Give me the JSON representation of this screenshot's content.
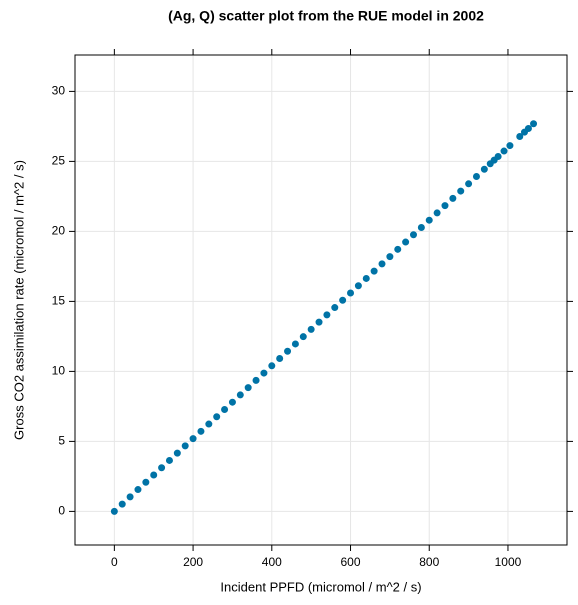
{
  "chart_data": {
    "type": "scatter",
    "title": "(Ag, Q) scatter plot from the RUE model in 2002",
    "x_label": "Incident PPFD (micromol / m^2 / s)",
    "y_label": "Gross CO2 assimilation rate (micromol / m^2 / s)",
    "series": [
      {
        "color": "#0073a6",
        "x": [
          0,
          20,
          40,
          60,
          80,
          100,
          120,
          140,
          160,
          180,
          200,
          220,
          240,
          260,
          280,
          300,
          320,
          340,
          360,
          380,
          400,
          420,
          440,
          460,
          480,
          500,
          520,
          540,
          560,
          580,
          600,
          620,
          640,
          660,
          680,
          700,
          720,
          740,
          760,
          780,
          800,
          820,
          840,
          860,
          880,
          900,
          920,
          940,
          955,
          965,
          975,
          990,
          1005,
          1030,
          1042,
          1052,
          1065
        ],
        "values": [
          0,
          0.52,
          1.04,
          1.56,
          2.08,
          2.6,
          3.12,
          3.64,
          4.16,
          4.68,
          5.2,
          5.72,
          6.24,
          6.76,
          7.28,
          7.8,
          8.32,
          8.84,
          9.36,
          9.88,
          10.4,
          10.92,
          11.44,
          11.96,
          12.48,
          13,
          13.52,
          14.04,
          14.56,
          15.08,
          15.6,
          16.12,
          16.64,
          17.16,
          17.68,
          18.2,
          18.72,
          19.24,
          19.76,
          20.28,
          20.8,
          21.32,
          21.84,
          22.36,
          22.88,
          23.4,
          23.92,
          24.44,
          24.83,
          25.09,
          25.35,
          25.74,
          26.13,
          26.78,
          27.09,
          27.35,
          27.69
        ]
      }
    ],
    "xlim": [
      -100,
      1150
    ],
    "ylim": [
      -2.4,
      32.6
    ],
    "xticks": [
      0,
      200,
      400,
      600,
      800,
      1000
    ],
    "yticks": [
      0,
      5,
      10,
      15,
      20,
      25,
      30
    ],
    "grid": true
  }
}
